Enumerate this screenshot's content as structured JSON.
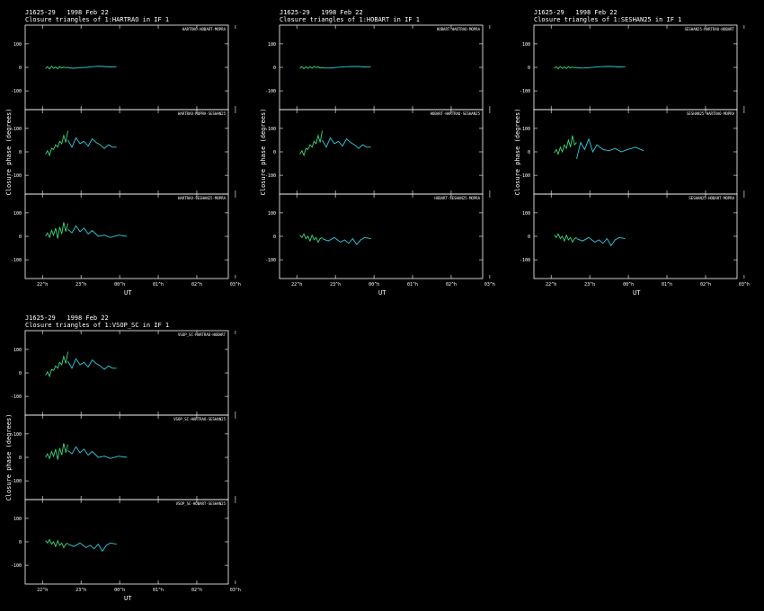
{
  "chart_data": [
    {
      "type": "line",
      "title_line1": "J1625-29   1998 Feb 22",
      "title_line2": "Closure triangles of 1:HARTRAO in IF 1",
      "ylabel": "Closure phase   (degrees)",
      "xlabel": "UT",
      "ylim": [
        -180,
        180
      ],
      "y_ticks": [
        -100,
        0,
        100
      ],
      "x_ticks": [
        "22^h",
        "23^h",
        "00^h",
        "01^h",
        "02^h",
        "03^h"
      ],
      "panels": [
        {
          "label": "HARTRAO-HOBART-MOPRA",
          "series": [
            {
              "name": "",
              "color": "#3cd97a",
              "x": [
                0.1,
                0.11,
                0.12,
                0.13,
                0.14,
                0.15,
                0.16,
                0.17,
                0.18,
                0.19,
                0.2,
                0.21
              ],
              "y": [
                -5,
                3,
                -7,
                5,
                -4,
                2,
                -6,
                4,
                -3,
                2,
                -2,
                1
              ]
            },
            {
              "name": "",
              "color": "#33ccdd",
              "x": [
                0.21,
                0.24,
                0.27,
                0.3,
                0.33,
                0.36,
                0.39,
                0.42,
                0.45
              ],
              "y": [
                -2,
                -4,
                -1,
                0,
                3,
                5,
                4,
                2,
                3
              ]
            }
          ]
        },
        {
          "label": "HARTRAO-MOPRA-SESHAN25",
          "series": [
            {
              "name": "",
              "color": "#3cd97a",
              "x": [
                0.1,
                0.11,
                0.12,
                0.13,
                0.14,
                0.15,
                0.16,
                0.17,
                0.18,
                0.19,
                0.2,
                0.21
              ],
              "y": [
                -10,
                5,
                -15,
                15,
                10,
                30,
                20,
                45,
                35,
                70,
                40,
                90
              ]
            },
            {
              "name": "",
              "color": "#33ccdd",
              "x": [
                0.21,
                0.23,
                0.25,
                0.27,
                0.29,
                0.31,
                0.33,
                0.35,
                0.37,
                0.39,
                0.41,
                0.43,
                0.45
              ],
              "y": [
                50,
                20,
                60,
                35,
                45,
                25,
                55,
                40,
                30,
                15,
                30,
                20,
                20
              ]
            }
          ]
        },
        {
          "label": "HARTRAO-SESHAN25-MOPRA",
          "series": [
            {
              "name": "",
              "color": "#3cd97a",
              "x": [
                0.1,
                0.11,
                0.12,
                0.13,
                0.14,
                0.15,
                0.16,
                0.17,
                0.18,
                0.19,
                0.2,
                0.21
              ],
              "y": [
                0,
                15,
                -5,
                25,
                5,
                35,
                -10,
                40,
                10,
                60,
                20,
                55
              ]
            },
            {
              "name": "",
              "color": "#33ccdd",
              "x": [
                0.21,
                0.23,
                0.25,
                0.27,
                0.29,
                0.31,
                0.33,
                0.36,
                0.39,
                0.42,
                0.46,
                0.5
              ],
              "y": [
                30,
                15,
                45,
                20,
                35,
                10,
                25,
                0,
                5,
                -5,
                5,
                0
              ]
            }
          ]
        }
      ]
    },
    {
      "type": "line",
      "title_line1": "J1625-29   1998 Feb 22",
      "title_line2": "Closure triangles of 1:HOBART in IF 1",
      "ylabel": "Closure phase   (degrees)",
      "xlabel": "UT",
      "ylim": [
        -180,
        180
      ],
      "y_ticks": [
        -100,
        0,
        100
      ],
      "x_ticks": [
        "22^h",
        "23^h",
        "00^h",
        "01^h",
        "02^h",
        "03^h"
      ],
      "panels": [
        {
          "label": "HOBART-HARTRAO-MOPRA",
          "series": [
            {
              "name": "",
              "color": "#3cd97a",
              "x": [
                0.1,
                0.11,
                0.12,
                0.13,
                0.14,
                0.15,
                0.16,
                0.17,
                0.18,
                0.19,
                0.2,
                0.21
              ],
              "y": [
                -4,
                4,
                -6,
                3,
                -5,
                3,
                -4,
                5,
                -2,
                3,
                -3,
                1
              ]
            },
            {
              "name": "",
              "color": "#33ccdd",
              "x": [
                0.21,
                0.24,
                0.27,
                0.3,
                0.33,
                0.36,
                0.39,
                0.42,
                0.45
              ],
              "y": [
                -2,
                -3,
                -1,
                1,
                3,
                4,
                4,
                2,
                3
              ]
            }
          ]
        },
        {
          "label": "HOBART-HARTRAO-SESHAN25",
          "series": [
            {
              "name": "",
              "color": "#3cd97a",
              "x": [
                0.1,
                0.11,
                0.12,
                0.13,
                0.14,
                0.15,
                0.16,
                0.17,
                0.18,
                0.19,
                0.2,
                0.21
              ],
              "y": [
                -10,
                5,
                -15,
                15,
                10,
                30,
                20,
                45,
                35,
                70,
                40,
                90
              ]
            },
            {
              "name": "",
              "color": "#33ccdd",
              "x": [
                0.21,
                0.23,
                0.25,
                0.27,
                0.29,
                0.31,
                0.33,
                0.35,
                0.37,
                0.39,
                0.41,
                0.43,
                0.45
              ],
              "y": [
                50,
                20,
                60,
                35,
                45,
                25,
                55,
                40,
                30,
                15,
                30,
                20,
                20
              ]
            }
          ]
        },
        {
          "label": "HOBART-SESHAN25-MOPRA",
          "series": [
            {
              "name": "",
              "color": "#3cd97a",
              "x": [
                0.1,
                0.11,
                0.12,
                0.13,
                0.14,
                0.15,
                0.16,
                0.17,
                0.18,
                0.19,
                0.2,
                0.21
              ],
              "y": [
                5,
                -5,
                10,
                -10,
                0,
                -20,
                5,
                -15,
                -5,
                -25,
                -10,
                -5
              ]
            },
            {
              "name": "",
              "color": "#33ccdd",
              "x": [
                0.21,
                0.24,
                0.27,
                0.3,
                0.32,
                0.34,
                0.36,
                0.38,
                0.4,
                0.42,
                0.45
              ],
              "y": [
                -10,
                -20,
                -5,
                -25,
                -15,
                -30,
                -10,
                -35,
                -15,
                -5,
                -10
              ]
            }
          ]
        }
      ]
    },
    {
      "type": "line",
      "title_line1": "J1625-29   1998 Feb 22",
      "title_line2": "Closure triangles of 1:SESHAN25 in IF 1",
      "ylabel": "Closure phase   (degrees)",
      "xlabel": "UT",
      "ylim": [
        -180,
        180
      ],
      "y_ticks": [
        -100,
        0,
        100
      ],
      "x_ticks": [
        "22^h",
        "23^h",
        "00^h",
        "01^h",
        "02^h",
        "03^h"
      ],
      "panels": [
        {
          "label": "SESHAN25-HARTRAO-HOBART",
          "series": [
            {
              "name": "",
              "color": "#3cd97a",
              "x": [
                0.1,
                0.11,
                0.12,
                0.13,
                0.14,
                0.15,
                0.16,
                0.17,
                0.18,
                0.19,
                0.2,
                0.21
              ],
              "y": [
                -4,
                3,
                -6,
                4,
                -5,
                2,
                -5,
                4,
                -3,
                2,
                -2,
                1
              ]
            },
            {
              "name": "",
              "color": "#33ccdd",
              "x": [
                0.21,
                0.24,
                0.27,
                0.3,
                0.33,
                0.36,
                0.39,
                0.42,
                0.45
              ],
              "y": [
                -2,
                -3,
                -1,
                1,
                3,
                4,
                4,
                2,
                3
              ]
            }
          ]
        },
        {
          "label": "SESHAN25-HARTRAO-MOPRA",
          "series": [
            {
              "name": "",
              "color": "#3cd97a",
              "x": [
                0.1,
                0.11,
                0.12,
                0.13,
                0.14,
                0.15,
                0.16,
                0.17,
                0.18,
                0.19,
                0.2,
                0.21
              ],
              "y": [
                -5,
                10,
                -10,
                20,
                0,
                30,
                15,
                50,
                20,
                70,
                30,
                40
              ]
            },
            {
              "name": "",
              "color": "#33ccdd",
              "x": [
                0.21,
                0.23,
                0.25,
                0.27,
                0.29,
                0.31,
                0.34,
                0.37,
                0.4,
                0.43,
                0.46,
                0.5,
                0.54
              ],
              "y": [
                -30,
                40,
                10,
                55,
                0,
                30,
                10,
                5,
                15,
                0,
                10,
                20,
                5
              ]
            }
          ]
        },
        {
          "label": "SESHAN25-HOBART-MOPRA",
          "series": [
            {
              "name": "",
              "color": "#3cd97a",
              "x": [
                0.1,
                0.11,
                0.12,
                0.13,
                0.14,
                0.15,
                0.16,
                0.17,
                0.18,
                0.19,
                0.2,
                0.21
              ],
              "y": [
                5,
                -5,
                10,
                -10,
                0,
                -20,
                5,
                -15,
                -5,
                -25,
                -10,
                -5
              ]
            },
            {
              "name": "",
              "color": "#33ccdd",
              "x": [
                0.21,
                0.24,
                0.27,
                0.3,
                0.32,
                0.34,
                0.36,
                0.38,
                0.4,
                0.42,
                0.45
              ],
              "y": [
                -10,
                -20,
                -5,
                -25,
                -15,
                -30,
                -10,
                -40,
                -15,
                -5,
                -10
              ]
            }
          ]
        }
      ]
    },
    {
      "type": "line",
      "title_line1": "J1625-29   1998 Feb 22",
      "title_line2": "Closure triangles of 1:VSOP_SC in IF 1",
      "ylabel": "Closure phase   (degrees)",
      "xlabel": "UT",
      "ylim": [
        -180,
        180
      ],
      "y_ticks": [
        -100,
        0,
        100
      ],
      "x_ticks": [
        "22^h",
        "23^h",
        "00^h",
        "01^h",
        "02^h",
        "03^h"
      ],
      "panels": [
        {
          "label": "VSOP_SC-HARTRAO-HOBART",
          "series": [
            {
              "name": "",
              "color": "#3cd97a",
              "x": [
                0.1,
                0.11,
                0.12,
                0.13,
                0.14,
                0.15,
                0.16,
                0.17,
                0.18,
                0.19,
                0.2,
                0.21
              ],
              "y": [
                -10,
                5,
                -15,
                15,
                10,
                30,
                20,
                45,
                35,
                70,
                40,
                90
              ]
            },
            {
              "name": "",
              "color": "#33ccdd",
              "x": [
                0.21,
                0.23,
                0.25,
                0.27,
                0.29,
                0.31,
                0.33,
                0.35,
                0.37,
                0.39,
                0.41,
                0.43,
                0.45
              ],
              "y": [
                50,
                20,
                60,
                35,
                45,
                25,
                55,
                40,
                30,
                15,
                30,
                20,
                20
              ]
            }
          ]
        },
        {
          "label": "VSOP_SC-HARTRAO-SESHAN25",
          "series": [
            {
              "name": "",
              "color": "#3cd97a",
              "x": [
                0.1,
                0.11,
                0.12,
                0.13,
                0.14,
                0.15,
                0.16,
                0.17,
                0.18,
                0.19,
                0.2,
                0.21
              ],
              "y": [
                0,
                15,
                -5,
                25,
                5,
                35,
                -10,
                40,
                10,
                60,
                20,
                55
              ]
            },
            {
              "name": "",
              "color": "#33ccdd",
              "x": [
                0.21,
                0.23,
                0.25,
                0.27,
                0.29,
                0.31,
                0.33,
                0.36,
                0.39,
                0.42,
                0.46,
                0.5
              ],
              "y": [
                30,
                15,
                45,
                20,
                35,
                10,
                25,
                0,
                5,
                -5,
                5,
                0
              ]
            }
          ]
        },
        {
          "label": "VSOP_SC-HOBART-SESHAN25",
          "series": [
            {
              "name": "",
              "color": "#3cd97a",
              "x": [
                0.1,
                0.11,
                0.12,
                0.13,
                0.14,
                0.15,
                0.16,
                0.17,
                0.18,
                0.19,
                0.2,
                0.21
              ],
              "y": [
                5,
                -5,
                10,
                -10,
                0,
                -20,
                5,
                -15,
                -5,
                -25,
                -10,
                -5
              ]
            },
            {
              "name": "",
              "color": "#33ccdd",
              "x": [
                0.21,
                0.24,
                0.27,
                0.3,
                0.32,
                0.34,
                0.36,
                0.38,
                0.4,
                0.42,
                0.45
              ],
              "y": [
                -10,
                -20,
                -5,
                -25,
                -15,
                -30,
                -10,
                -40,
                -15,
                -5,
                -10
              ]
            }
          ]
        }
      ]
    }
  ]
}
